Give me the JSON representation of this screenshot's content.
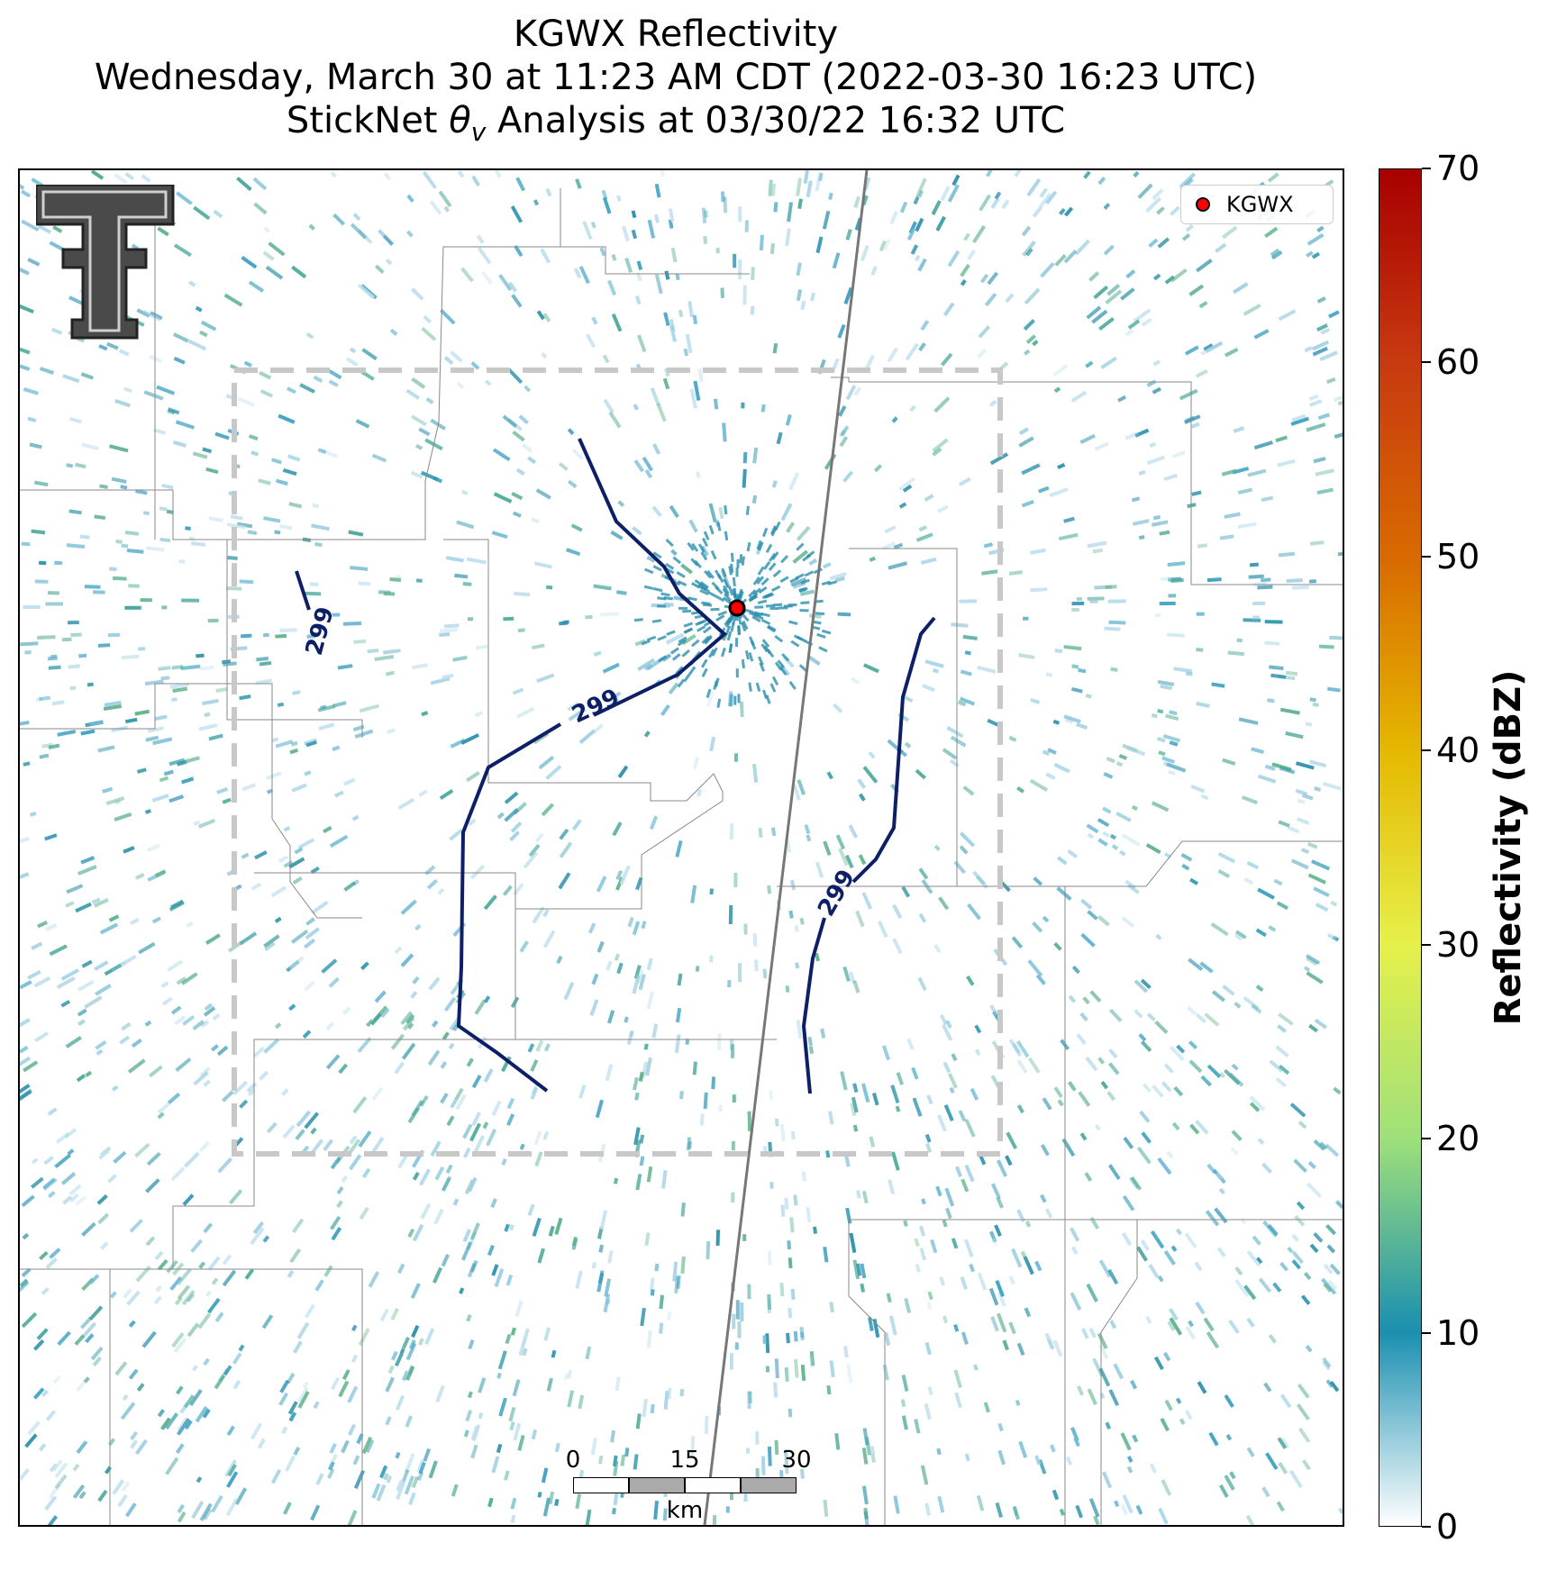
{
  "title": {
    "line1": "KGWX Reflectivity",
    "line2": "Wednesday, March 30 at 11:23 AM CDT (2022-03-30 16:23 UTC)",
    "line3_prefix": "StickNet ",
    "line3_symbol": "θ",
    "line3_subscript": "v",
    "line3_suffix": " Analysis at 03/30/22 16:32 UTC"
  },
  "legend": {
    "label": "KGWX",
    "marker_color": "#ff0000"
  },
  "radar_site": {
    "name": "KGWX",
    "marker_color": "#ff0000"
  },
  "contour": {
    "value": "299",
    "color": "#0d1f66"
  },
  "analysis_box": {
    "style": "dashed",
    "color": "#c8c8c8"
  },
  "colorbar": {
    "title": "Reflectivity (dBZ)",
    "min": 0,
    "max": 70,
    "ticks": [
      "0",
      "10",
      "20",
      "30",
      "40",
      "50",
      "60",
      "70"
    ],
    "colors": [
      "#ffffff",
      "#1a8fb0",
      "#9fe07a",
      "#e6f04a",
      "#e5b800",
      "#d86a00",
      "#c83a10",
      "#a80000"
    ]
  },
  "scalebar": {
    "ticks": [
      "0",
      "15",
      "30"
    ],
    "unit": "km"
  },
  "logo": {
    "name": "texas-tech-double-t-logo",
    "text": "T"
  },
  "echo_color": "#3a9fbf"
}
